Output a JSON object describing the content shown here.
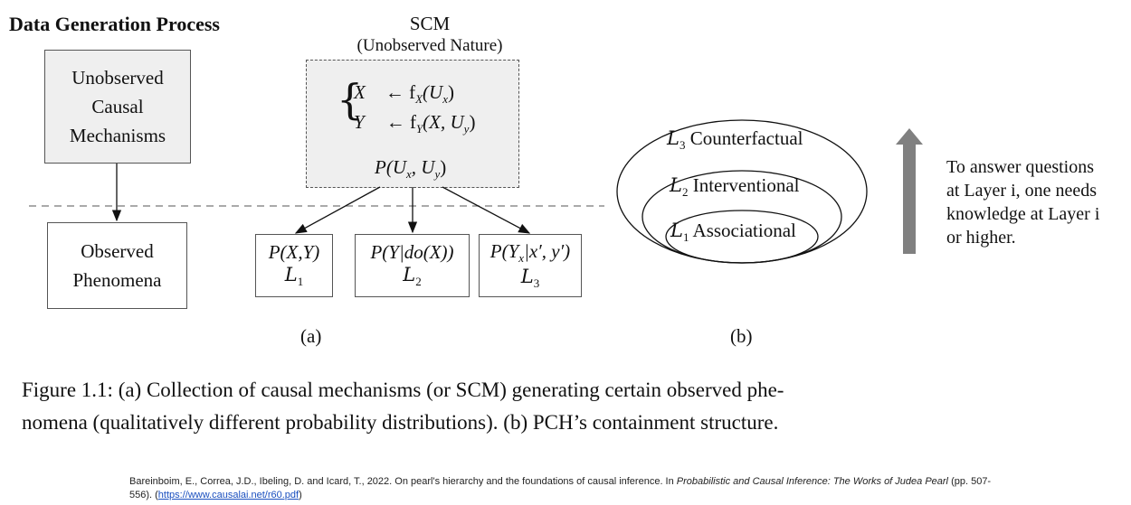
{
  "left": {
    "title": "Data Generation Process",
    "unobserved_box": [
      "Unobserved",
      "Causal",
      "Mechanisms"
    ],
    "observed_box": [
      "Observed",
      "Phenomena"
    ]
  },
  "scm": {
    "title": "SCM",
    "subtitle": "(Unobserved Nature)",
    "eq_x_lhs": "X",
    "eq_x_rhs": "← f",
    "eq_x_sub": "X",
    "eq_x_arg": "(U",
    "eq_x_arg_sub": "x",
    "eq_y_lhs": "Y",
    "eq_y_rhs": "← f",
    "eq_y_sub": "Y",
    "eq_y_arg": "(X, U",
    "eq_y_arg_sub": "y",
    "dist": "P(U",
    "dist_sub1": "x",
    "dist_mid": ", U",
    "dist_sub2": "y"
  },
  "layers": [
    {
      "expr": "P(X,Y)",
      "label": "L",
      "sub": "1"
    },
    {
      "expr": "P(Y|do(X))",
      "label": "L",
      "sub": "2"
    },
    {
      "expr": "P(Y",
      "expr_sub": "x",
      "expr_rest": "|x′, y′)",
      "label": "L",
      "sub": "3"
    }
  ],
  "panel_labels": {
    "a": "(a)",
    "b": "(b)"
  },
  "pch": {
    "l3": "Counterfactual",
    "l2": "Interventional",
    "l1": "Associational",
    "l3_sub": "3",
    "l2_sub": "2",
    "l1_sub": "1",
    "letter": "L"
  },
  "note": [
    "To answer questions",
    "at Layer i, one needs",
    "knowledge at Layer i",
    "or higher."
  ],
  "caption": {
    "line1": "Figure 1.1: (a) Collection of causal mechanisms (or SCM) generating certain observed phe-",
    "line2": "nomena (qualitatively different probability distributions). (b) PCH’s containment structure."
  },
  "reference": {
    "text1": "Bareinboim, E., Correa, J.D., Ibeling, D. and Icard, T., 2022. On pearl's hierarchy and the foundations of causal inference. In ",
    "italic": "Probabilistic and Causal Inference: The Works of Judea Pearl",
    "text2": " (pp. 507-556). (",
    "link": "https://www.causalai.net/r60.pdf",
    "text3": ")"
  },
  "colors": {
    "box_fill": "#efefef",
    "arrow": "#808080",
    "line": "#333333"
  }
}
